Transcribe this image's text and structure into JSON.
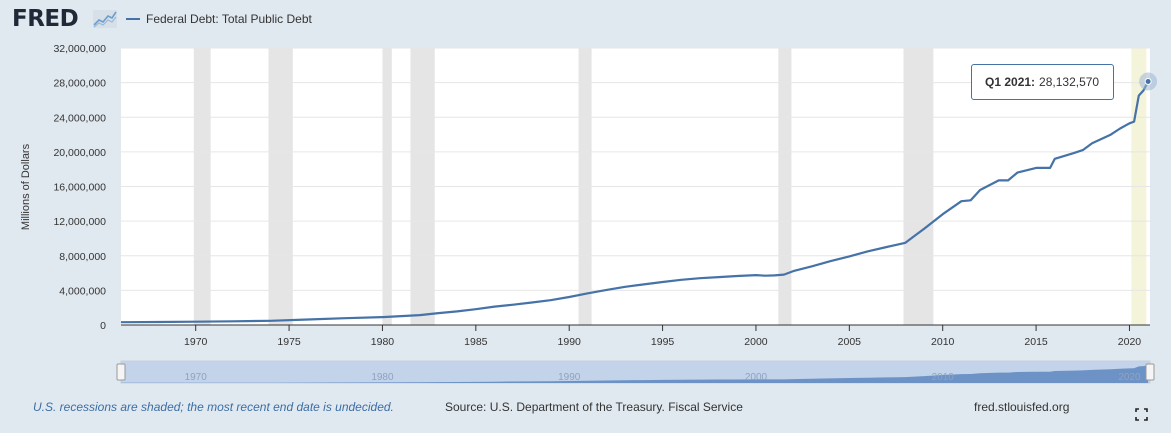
{
  "brand": {
    "logo_text": "FRED",
    "logo_icon": "line-graph-icon"
  },
  "legend": {
    "series_label": "Federal Debt: Total Public Debt",
    "color": "#4572a7"
  },
  "tooltip": {
    "period": "Q1 2021:",
    "value": "28,132,570"
  },
  "footer": {
    "recession_note": "U.S. recessions are shaded; the most recent end date is undecided.",
    "source": "Source: U.S. Department of the Treasury. Fiscal Service",
    "site": "fred.stlouisfed.org",
    "fullscreen_icon": "fullscreen-icon"
  },
  "chart_data": {
    "type": "line",
    "title": "",
    "xlabel": "",
    "ylabel": "Millions of Dollars",
    "xlim": [
      1966.0,
      2021.1
    ],
    "ylim": [
      0,
      32000000
    ],
    "y_ticks": [
      0,
      4000000,
      8000000,
      12000000,
      16000000,
      20000000,
      24000000,
      28000000,
      32000000
    ],
    "y_tick_labels": [
      "0",
      "4,000,000",
      "8,000,000",
      "12,000,000",
      "16,000,000",
      "20,000,000",
      "24,000,000",
      "28,000,000",
      "32,000,000"
    ],
    "x_ticks": [
      1970,
      1975,
      1980,
      1985,
      1990,
      1995,
      2000,
      2005,
      2010,
      2015,
      2020
    ],
    "x_tick_labels": [
      "1970",
      "1975",
      "1980",
      "1985",
      "1990",
      "1995",
      "2000",
      "2005",
      "2010",
      "2015",
      "2020"
    ],
    "navigator_tick_labels": [
      "1970",
      "1980",
      "1990",
      "2000",
      "2010",
      "2020"
    ],
    "grid": true,
    "legend_position": "top-left",
    "series_color": "#4572a7",
    "recessions": [
      [
        1969.9,
        1970.8
      ],
      [
        1973.9,
        1975.2
      ],
      [
        1980.0,
        1980.5
      ],
      [
        1981.5,
        1982.8
      ],
      [
        1990.5,
        1991.2
      ],
      [
        2001.2,
        2001.9
      ],
      [
        2007.9,
        2009.5
      ],
      [
        2020.1,
        2020.9
      ]
    ],
    "series": [
      {
        "name": "Federal Debt: Total Public Debt",
        "x": [
          1966.0,
          1968.0,
          1970.0,
          1972.0,
          1974.0,
          1976.0,
          1978.0,
          1980.0,
          1982.0,
          1983.0,
          1984.0,
          1985.0,
          1986.0,
          1987.0,
          1988.0,
          1989.0,
          1990.0,
          1991.0,
          1992.0,
          1993.0,
          1994.0,
          1995.0,
          1996.0,
          1997.0,
          1998.0,
          1999.0,
          2000.0,
          2000.5,
          2001.0,
          2001.5,
          2002.0,
          2003.0,
          2004.0,
          2005.0,
          2006.0,
          2007.0,
          2008.0,
          2008.5,
          2009.0,
          2010.0,
          2011.0,
          2011.5,
          2012.0,
          2013.0,
          2013.5,
          2014.0,
          2015.0,
          2015.75,
          2016.0,
          2017.0,
          2017.5,
          2018.0,
          2019.0,
          2019.5,
          2020.0,
          2020.25,
          2020.5,
          2020.75,
          2021.0
        ],
        "values": [
          320000,
          345000,
          380000,
          430000,
          480000,
          630000,
          780000,
          910000,
          1140000,
          1380000,
          1570000,
          1820000,
          2120000,
          2350000,
          2600000,
          2860000,
          3230000,
          3660000,
          4060000,
          4410000,
          4690000,
          4970000,
          5220000,
          5410000,
          5530000,
          5660000,
          5770000,
          5690000,
          5730000,
          5820000,
          6230000,
          6780000,
          7380000,
          7930000,
          8510000,
          9010000,
          9500000,
          10300000,
          11100000,
          12800000,
          14300000,
          14400000,
          15600000,
          16700000,
          16700000,
          17600000,
          18150000,
          18150000,
          19200000,
          19850000,
          20200000,
          21000000,
          22000000,
          22700000,
          23300000,
          23500000,
          26500000,
          27100000,
          28132570
        ]
      }
    ]
  }
}
